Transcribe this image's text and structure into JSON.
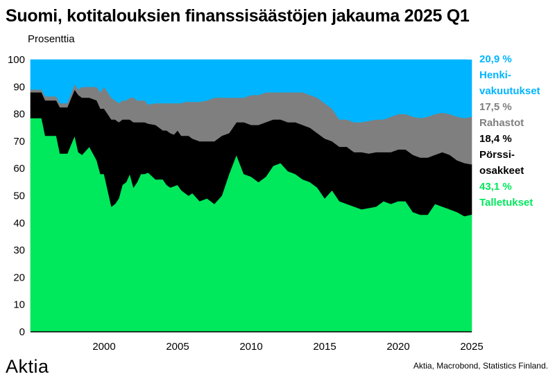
{
  "title": "Suomi, kotitalouksien finanssisäästöjen jakauma 2025 Q1",
  "logo": "Aktia",
  "source": "Aktia, Macrobond, Statistics Finland.",
  "chart_data": {
    "type": "area",
    "stacked": true,
    "ylabel": "Prosenttia",
    "ylim": [
      0,
      100
    ],
    "yticks": [
      0,
      10,
      20,
      30,
      40,
      50,
      60,
      70,
      80,
      90,
      100
    ],
    "xlim": [
      1995.0,
      2025.0
    ],
    "xticks": [
      2000,
      2005,
      2010,
      2015,
      2020,
      2025
    ],
    "grid": false,
    "legend_position": "right",
    "x": [
      1995.0,
      1995.75,
      1996.0,
      1996.75,
      1997.0,
      1997.5,
      1998.0,
      1998.25,
      1998.5,
      1999.0,
      1999.5,
      1999.75,
      2000.0,
      2000.5,
      2000.75,
      2001.0,
      2001.25,
      2001.5,
      2001.75,
      2002.0,
      2002.25,
      2002.5,
      2002.75,
      2003.0,
      2003.5,
      2004.0,
      2004.25,
      2004.5,
      2004.75,
      2005.0,
      2005.25,
      2005.5,
      2005.75,
      2006.0,
      2006.5,
      2007.0,
      2007.5,
      2008.0,
      2008.5,
      2009.0,
      2009.5,
      2010.0,
      2010.5,
      2011.0,
      2011.5,
      2012.0,
      2012.5,
      2013.0,
      2013.5,
      2014.0,
      2014.5,
      2015.0,
      2015.5,
      2016.0,
      2016.5,
      2017.0,
      2017.5,
      2018.0,
      2018.5,
      2019.0,
      2019.5,
      2020.0,
      2020.5,
      2021.0,
      2021.5,
      2022.0,
      2022.5,
      2023.0,
      2023.5,
      2024.0,
      2024.5,
      2025.0
    ],
    "series": [
      {
        "name": "Talletukset",
        "color": "#00e85c",
        "values": [
          78.5,
          78.5,
          72,
          72,
          65.5,
          65.5,
          72,
          66,
          65,
          68,
          63,
          58,
          58,
          46,
          47,
          49,
          54,
          55,
          58,
          53,
          55,
          58,
          58,
          58.5,
          56,
          56,
          54,
          53,
          53.5,
          54,
          52,
          51,
          50,
          51,
          48,
          49,
          47,
          50,
          58,
          65,
          58,
          57,
          55,
          57,
          61,
          62,
          59,
          58,
          56,
          55,
          53,
          49,
          52,
          48,
          47,
          46,
          45,
          45.5,
          46,
          48,
          47,
          48,
          48,
          44,
          43,
          43,
          47,
          46,
          45,
          44,
          42.5,
          43.1
        ]
      },
      {
        "name": "Pörssiosakkeet",
        "color": "#000000",
        "values": [
          9.5,
          9.5,
          13,
          13,
          17,
          17,
          17,
          21,
          21,
          18,
          22,
          24,
          24,
          32,
          31,
          28,
          24,
          23,
          20,
          24,
          22,
          19,
          19,
          18,
          20,
          18,
          20,
          20,
          19,
          20,
          20,
          21,
          22,
          20,
          22,
          21,
          23,
          22,
          15,
          12,
          19,
          19,
          21,
          20,
          17,
          16,
          18,
          19,
          20,
          20,
          20,
          22,
          18,
          20,
          21,
          20,
          21,
          20,
          20,
          18,
          19,
          19,
          19,
          21,
          21,
          21,
          18,
          20,
          20,
          19,
          19.5,
          18.4
        ]
      },
      {
        "name": "Rahastot",
        "color": "#7f7f7f",
        "values": [
          1,
          1,
          1.5,
          1.5,
          1.5,
          1.5,
          2,
          2,
          4,
          4,
          5,
          6,
          8,
          8,
          7,
          7,
          7,
          7,
          8,
          9,
          8,
          8,
          8,
          7,
          8,
          10,
          10,
          11,
          11.5,
          10,
          12,
          12.5,
          12.5,
          13.5,
          14.5,
          15,
          16,
          14,
          13,
          9,
          9,
          11,
          11,
          11,
          10,
          10,
          11,
          11,
          12,
          12,
          13,
          13,
          12,
          10,
          10,
          11,
          11,
          12,
          12,
          12,
          13,
          13,
          13,
          14,
          14.5,
          15,
          15,
          14.5,
          15,
          16,
          16.5,
          17.5
        ]
      },
      {
        "name": "Henkivakuutukset",
        "color": "#00b4ff",
        "values": [
          11,
          11,
          13.5,
          13.5,
          16,
          16,
          9,
          11,
          10,
          10,
          10,
          12,
          10,
          14,
          15,
          16,
          15,
          15,
          14,
          14,
          15,
          15,
          15,
          16.5,
          16,
          16,
          16,
          16,
          16,
          16,
          16,
          15.5,
          15.5,
          15.5,
          15.5,
          15,
          14,
          14,
          14,
          14,
          14,
          13,
          13,
          12,
          12,
          12,
          12,
          12,
          12,
          13,
          14,
          16,
          18,
          22,
          22,
          23,
          23,
          22.5,
          22,
          22,
          21,
          20,
          20,
          21,
          21.5,
          21,
          20,
          19.5,
          20,
          21,
          21.5,
          20.9
        ]
      }
    ],
    "legend": [
      {
        "value": "20,9 %",
        "name": "Henki-\nvakuutukset",
        "color": "#00b4ff"
      },
      {
        "value": "17,5 %",
        "name": "Rahastot",
        "color": "#7f7f7f"
      },
      {
        "value": "18,4 %",
        "name": "Pörssi-\nosakkeet",
        "color": "#000000"
      },
      {
        "value": "43,1 %",
        "name": "Talletukset",
        "color": "#00e85c"
      }
    ]
  }
}
